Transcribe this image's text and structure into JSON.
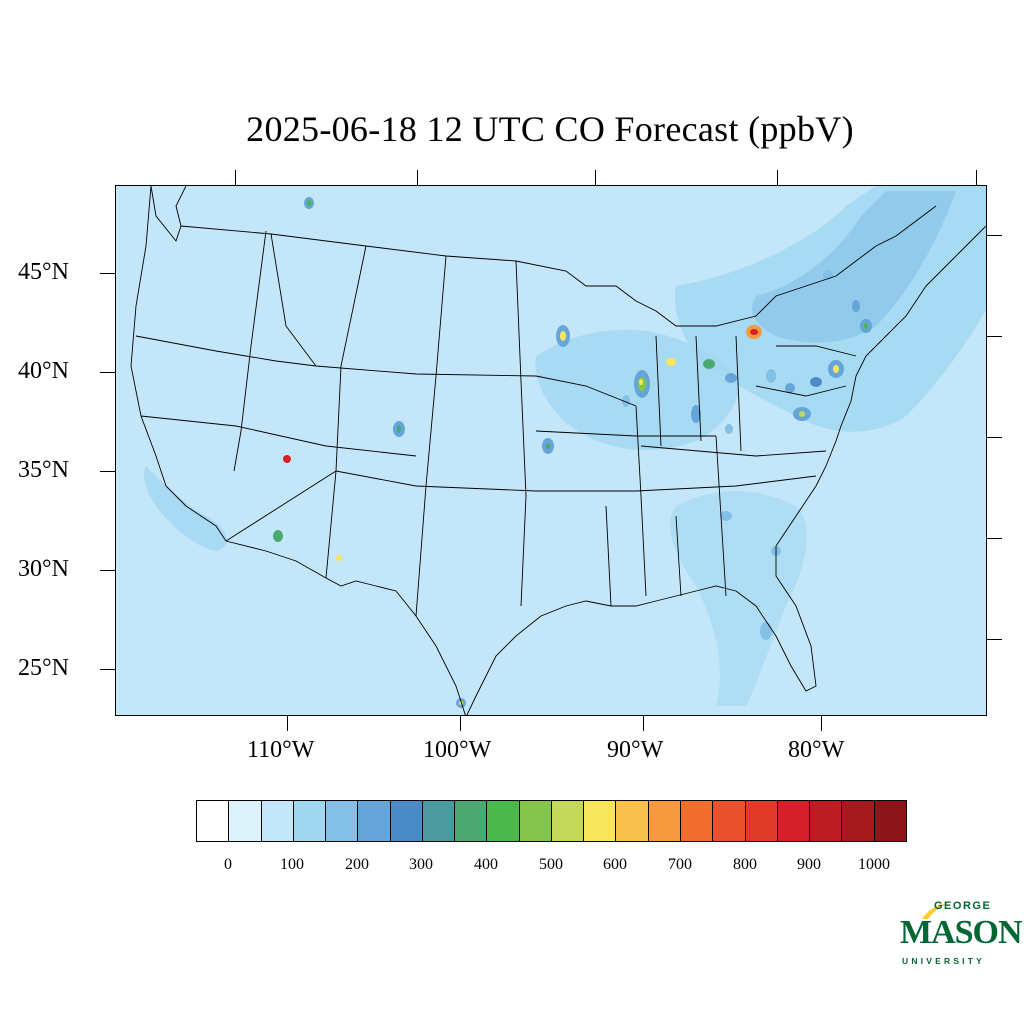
{
  "title": "2025-06-18 12 UTC CO Forecast (ppbV)",
  "latitude_labels": [
    "45°N",
    "40°N",
    "35°N",
    "30°N",
    "25°N"
  ],
  "longitude_labels": [
    "110°W",
    "100°W",
    "90°W",
    "80°W"
  ],
  "colorbar": {
    "labels": [
      "0",
      "100",
      "200",
      "300",
      "400",
      "500",
      "600",
      "700",
      "800",
      "900",
      "1000"
    ],
    "colors": [
      "#ffffff",
      "#def2fb",
      "#c3e6f8",
      "#a2d7f2",
      "#84bfe6",
      "#66a5d9",
      "#4a8bc8",
      "#4b9a9e",
      "#4aa870",
      "#4bb84c",
      "#86c54b",
      "#c3d85a",
      "#f7e65c",
      "#f8c04b",
      "#f7993e",
      "#f26d30",
      "#e9502b",
      "#e03a28",
      "#d42028",
      "#bd1c23",
      "#a41a1f",
      "#8b1519"
    ]
  },
  "logo": {
    "line1": "GEORGE",
    "line2": "MASON",
    "line3": "UNIVERSITY"
  }
}
